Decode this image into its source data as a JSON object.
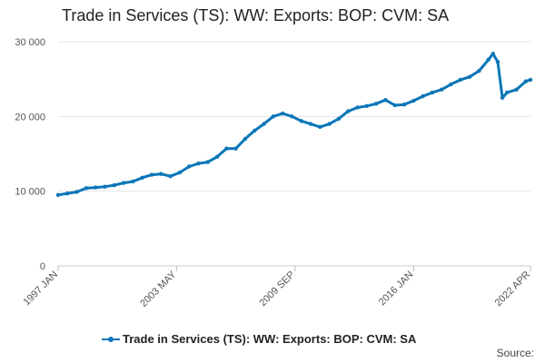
{
  "chart_data": {
    "type": "line",
    "title": "Trade in Services (TS): WW: Exports: BOP: CVM: SA",
    "xlabel": "",
    "ylabel": "",
    "ylim": [
      0,
      30000
    ],
    "y_ticks": [
      {
        "value": 0,
        "label": "0"
      },
      {
        "value": 10000,
        "label": "10 000"
      },
      {
        "value": 20000,
        "label": "20 000"
      },
      {
        "value": 30000,
        "label": "30 000"
      }
    ],
    "x_range": [
      1997.0,
      2022.25
    ],
    "x_ticks": [
      {
        "value": 1997.0,
        "label": "1997 JAN"
      },
      {
        "value": 2003.33,
        "label": "2003 MAY"
      },
      {
        "value": 2009.67,
        "label": "2009 SEP"
      },
      {
        "value": 2016.0,
        "label": "2016 JAN"
      },
      {
        "value": 2022.25,
        "label": "2022 APR"
      }
    ],
    "series": [
      {
        "name": "Trade in Services (TS): WW: Exports: BOP: CVM: SA",
        "color": "#0b76b7",
        "points": [
          [
            1997.0,
            9500
          ],
          [
            1997.5,
            9700
          ],
          [
            1998.0,
            9900
          ],
          [
            1998.5,
            10400
          ],
          [
            1999.0,
            10500
          ],
          [
            1999.5,
            10600
          ],
          [
            2000.0,
            10800
          ],
          [
            2000.5,
            11100
          ],
          [
            2001.0,
            11300
          ],
          [
            2001.5,
            11800
          ],
          [
            2002.0,
            12200
          ],
          [
            2002.5,
            12300
          ],
          [
            2003.0,
            12000
          ],
          [
            2003.5,
            12500
          ],
          [
            2004.0,
            13300
          ],
          [
            2004.5,
            13700
          ],
          [
            2005.0,
            13900
          ],
          [
            2005.5,
            14600
          ],
          [
            2006.0,
            15700
          ],
          [
            2006.5,
            15700
          ],
          [
            2007.0,
            17000
          ],
          [
            2007.5,
            18100
          ],
          [
            2008.0,
            19000
          ],
          [
            2008.5,
            20000
          ],
          [
            2009.0,
            20400
          ],
          [
            2009.5,
            20000
          ],
          [
            2010.0,
            19400
          ],
          [
            2010.5,
            19000
          ],
          [
            2011.0,
            18600
          ],
          [
            2011.5,
            19000
          ],
          [
            2012.0,
            19700
          ],
          [
            2012.5,
            20700
          ],
          [
            2013.0,
            21200
          ],
          [
            2013.5,
            21400
          ],
          [
            2014.0,
            21700
          ],
          [
            2014.5,
            22200
          ],
          [
            2015.0,
            21500
          ],
          [
            2015.5,
            21600
          ],
          [
            2016.0,
            22100
          ],
          [
            2016.5,
            22700
          ],
          [
            2017.0,
            23200
          ],
          [
            2017.5,
            23600
          ],
          [
            2018.0,
            24300
          ],
          [
            2018.5,
            24900
          ],
          [
            2019.0,
            25300
          ],
          [
            2019.5,
            26100
          ],
          [
            2020.0,
            27600
          ],
          [
            2020.25,
            28400
          ],
          [
            2020.5,
            27300
          ],
          [
            2020.75,
            22500
          ],
          [
            2021.0,
            23200
          ],
          [
            2021.5,
            23600
          ],
          [
            2022.0,
            24700
          ],
          [
            2022.25,
            24900
          ]
        ]
      }
    ],
    "legend": "bottom-center",
    "source_label": "Source:"
  }
}
